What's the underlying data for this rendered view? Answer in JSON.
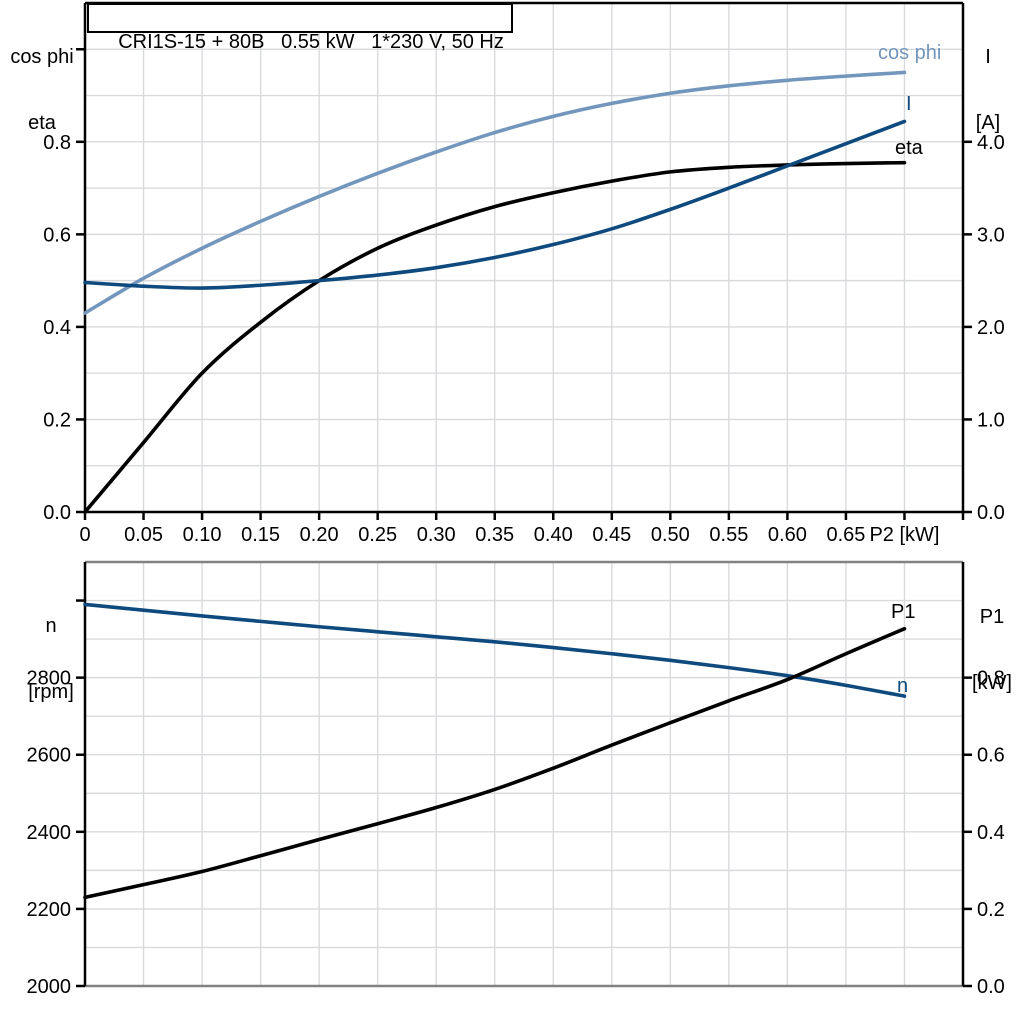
{
  "header": {
    "title": "CRI1S-15 + 80B   0.55 kW   1*230 V, 50 Hz"
  },
  "colors": {
    "background": "#ffffff",
    "axis_black": "#000000",
    "frame_gray": "#828282",
    "grid": "#d9dadc",
    "curve_black": "#000000",
    "curve_dark_blue": "#0e4a7d",
    "curve_light_blue": "#7396bd"
  },
  "top_chart": {
    "left_axis_title_line1": "cos phi",
    "left_axis_title_line2": "eta",
    "right_axis_title_line1": "I",
    "right_axis_title_line2": "[A]",
    "curve_label_cos_phi": "cos phi",
    "curve_label_current": "I",
    "curve_label_eta": "eta"
  },
  "bottom_chart": {
    "left_axis_title_line1": "n",
    "left_axis_title_line2": "[rpm]",
    "right_axis_title_line1": "P1",
    "right_axis_title_line2": "[kW]",
    "curve_label_p1": "P1",
    "curve_label_n": "n"
  },
  "chart_data": [
    {
      "type": "line",
      "title": "CRI1S-15 + 80B   0.55 kW   1*230 V, 50 Hz",
      "xlabel": "P2 [kW]",
      "xlim": [
        0,
        0.75
      ],
      "x_tick_step": 0.05,
      "x_tick_labels": [
        "0",
        "0.05",
        "0.10",
        "0.15",
        "0.20",
        "0.25",
        "0.30",
        "0.35",
        "0.40",
        "0.45",
        "0.50",
        "0.55",
        "0.60",
        "0.65"
      ],
      "y_left_label": "cos phi / eta",
      "y_left_lim": [
        0,
        1.1
      ],
      "y_left_tick_labels": [
        "0.0",
        "0.2",
        "0.4",
        "0.6",
        "0.8"
      ],
      "y_left_tick_values": [
        0,
        0.2,
        0.4,
        0.6,
        0.8
      ],
      "y_left_grid_step": 0.1,
      "y_right_label": "I [A]",
      "y_right_lim": [
        0,
        5.5
      ],
      "y_right_tick_labels": [
        "0.0",
        "1.0",
        "2.0",
        "3.0",
        "4.0"
      ],
      "y_right_tick_values": [
        0,
        1,
        2,
        3,
        4
      ],
      "grid": "on",
      "legend_position": "inline labels at right curve ends",
      "x": [
        0,
        0.05,
        0.1,
        0.15,
        0.2,
        0.25,
        0.3,
        0.35,
        0.4,
        0.45,
        0.5,
        0.55,
        0.6,
        0.65,
        0.7
      ],
      "series": [
        {
          "name": "cos phi",
          "axis": "left",
          "color_key": "curve_light_blue",
          "values": [
            0.43,
            0.505,
            0.57,
            0.628,
            0.682,
            0.732,
            0.778,
            0.82,
            0.855,
            0.883,
            0.905,
            0.921,
            0.933,
            0.942,
            0.95
          ]
        },
        {
          "name": "eta",
          "axis": "left",
          "color_key": "curve_black",
          "values": [
            0,
            0.15,
            0.3,
            0.41,
            0.5,
            0.57,
            0.62,
            0.66,
            0.69,
            0.715,
            0.735,
            0.745,
            0.75,
            0.753,
            0.755
          ]
        },
        {
          "name": "I",
          "axis": "right",
          "color_key": "curve_dark_blue",
          "values": [
            2.48,
            2.44,
            2.42,
            2.45,
            2.5,
            2.56,
            2.64,
            2.75,
            2.89,
            3.06,
            3.27,
            3.5,
            3.74,
            3.98,
            4.22
          ]
        }
      ]
    },
    {
      "type": "line",
      "title": "",
      "xlabel": "",
      "xlim": [
        0,
        0.75
      ],
      "x_tick_step": 0.05,
      "x_tick_labels": [],
      "y_left_label": "n [rpm]",
      "y_left_lim": [
        2000,
        3100
      ],
      "y_left_tick_labels": [
        "2000",
        "2200",
        "2400",
        "2600",
        "2800"
      ],
      "y_left_tick_values": [
        2000,
        2200,
        2400,
        2600,
        2800
      ],
      "y_left_grid_step": 100,
      "y_right_label": "P1 [kW]",
      "y_right_lim": [
        0,
        1.1
      ],
      "y_right_tick_labels": [
        "0.0",
        "0.2",
        "0.4",
        "0.6",
        "0.8"
      ],
      "y_right_tick_values": [
        0,
        0.2,
        0.4,
        0.6,
        0.8
      ],
      "grid": "on",
      "legend_position": "inline labels at right curve ends",
      "x": [
        0,
        0.05,
        0.1,
        0.15,
        0.2,
        0.25,
        0.3,
        0.35,
        0.4,
        0.45,
        0.5,
        0.55,
        0.6,
        0.65,
        0.7
      ],
      "series": [
        {
          "name": "n",
          "axis": "left",
          "color_key": "curve_dark_blue",
          "values": [
            2990,
            2975,
            2960,
            2946,
            2932,
            2919,
            2906,
            2893,
            2878,
            2862,
            2845,
            2826,
            2805,
            2780,
            2752
          ]
        },
        {
          "name": "P1",
          "axis": "right",
          "color_key": "curve_black",
          "values": [
            0.23,
            0.263,
            0.297,
            0.338,
            0.38,
            0.421,
            0.463,
            0.51,
            0.565,
            0.625,
            0.683,
            0.74,
            0.795,
            0.862,
            0.927
          ]
        }
      ]
    }
  ]
}
